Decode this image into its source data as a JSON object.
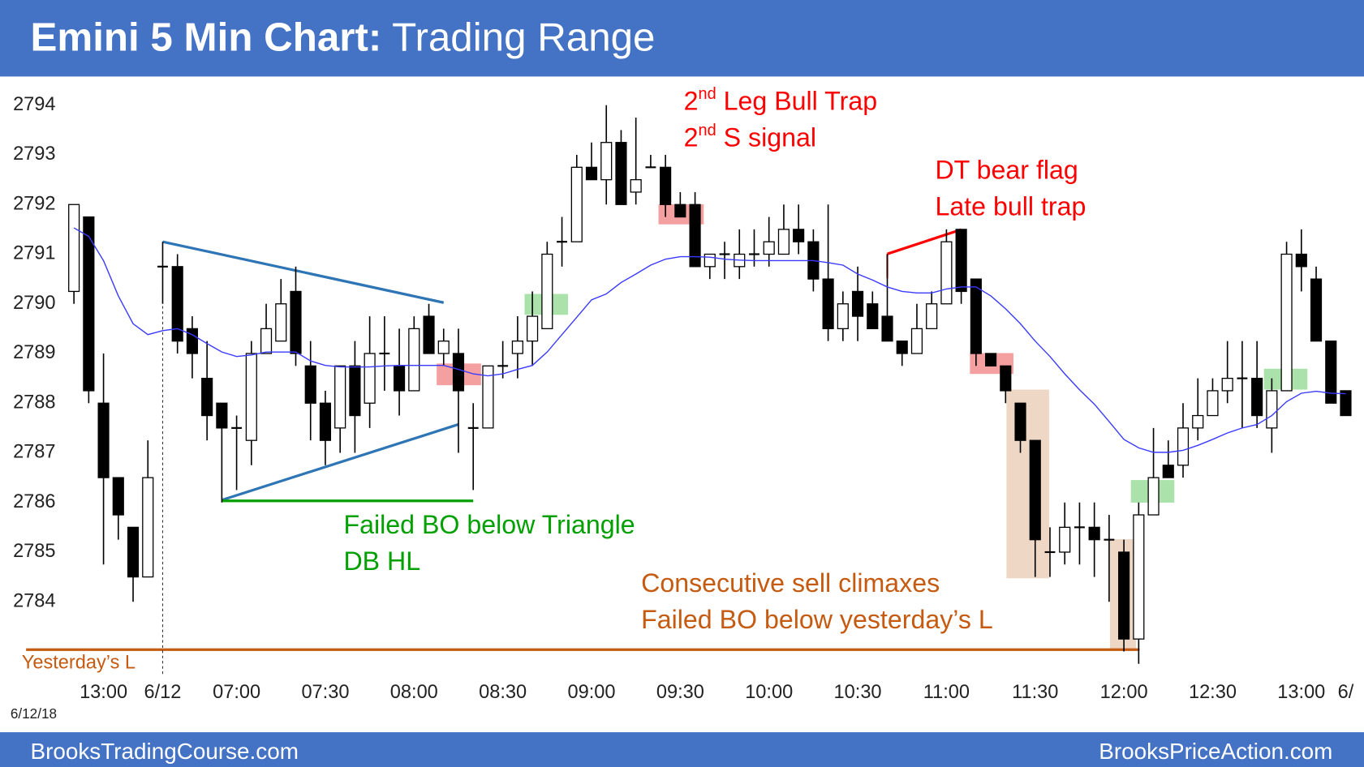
{
  "header": {
    "title_bold": "Emini 5 Min Chart:",
    "title": "Trading Range"
  },
  "footer": {
    "left": "BrooksTradingCourse.com",
    "right": "BrooksPriceAction.com"
  },
  "date_label": "6/12/18",
  "chart_data": {
    "type": "candlestick",
    "categories": [
      null,
      null,
      "13:00",
      null,
      null,
      null,
      "6/12",
      null,
      null,
      null,
      null,
      "07:00",
      null,
      null,
      null,
      null,
      null,
      "07:30",
      null,
      null,
      null,
      null,
      null,
      "08:00",
      null,
      null,
      null,
      null,
      null,
      "08:30",
      null,
      null,
      null,
      null,
      null,
      "09:00",
      null,
      null,
      null,
      null,
      null,
      "09:30",
      null,
      null,
      null,
      null,
      null,
      "10:00",
      null,
      null,
      null,
      null,
      null,
      "10:30",
      null,
      null,
      null,
      null,
      null,
      "11:00",
      null,
      null,
      null,
      null,
      null,
      "11:30",
      null,
      null,
      null,
      null,
      null,
      "12:00",
      null,
      null,
      null,
      null,
      null,
      "12:30",
      null,
      null,
      null,
      null,
      null,
      "13:00",
      null,
      null,
      "6/"
    ],
    "open": [
      2790.25,
      2791.75,
      2788.0,
      2786.5,
      2785.5,
      2784.5,
      2790.75,
      2790.75,
      2789.5,
      2788.5,
      2788.0,
      2787.5,
      2787.25,
      2789.0,
      2789.25,
      2790.25,
      2788.75,
      2788.0,
      2787.5,
      2788.75,
      2788.0,
      2789.0,
      2788.75,
      2788.25,
      2789.75,
      2789.0,
      2789.0,
      2787.5,
      2787.5,
      2788.75,
      2789.0,
      2789.25,
      2789.5,
      2791.25,
      2791.25,
      2792.75,
      2792.5,
      2793.25,
      2792.25,
      2792.75,
      2792.75,
      2792.0,
      2792.0,
      2790.75,
      2791.0,
      2790.75,
      2791.0,
      2791.0,
      2791.0,
      2791.5,
      2791.25,
      2790.5,
      2789.5,
      2790.25,
      2790.0,
      2789.75,
      2789.25,
      2789.0,
      2789.5,
      2790.0,
      2791.5,
      2790.5,
      2789.0,
      2788.75,
      2788.0,
      2787.25,
      2785.0,
      2785.0,
      2785.5,
      2785.5,
      2785.25,
      2785.0,
      2783.25,
      2785.75,
      2786.75,
      2786.75,
      2787.5,
      2787.75,
      2788.25,
      2788.5,
      2788.5,
      2787.5,
      2788.25,
      2791.0,
      2790.5,
      2789.25,
      2788.25
    ],
    "high": [
      2792.0,
      2791.75,
      2789.0,
      2786.5,
      2785.5,
      2787.25,
      2791.25,
      2791.0,
      2789.75,
      2789.25,
      2788.0,
      2787.75,
      2789.25,
      2790.0,
      2790.5,
      2790.75,
      2789.25,
      2788.25,
      2788.75,
      2789.25,
      2789.75,
      2789.75,
      2789.5,
      2789.75,
      2790.0,
      2789.5,
      2789.5,
      2788.0,
      2788.75,
      2789.25,
      2789.75,
      2790.25,
      2791.25,
      2791.75,
      2793.0,
      2793.25,
      2794.0,
      2793.5,
      2793.75,
      2793.0,
      2793.0,
      2792.25,
      2792.25,
      2791.0,
      2791.25,
      2791.5,
      2791.5,
      2791.75,
      2792.0,
      2792.0,
      2791.5,
      2792.0,
      2790.25,
      2790.75,
      2790.25,
      2791.0,
      2789.25,
      2790.0,
      2790.25,
      2791.5,
      2791.5,
      2790.5,
      2789.0,
      2788.75,
      2788.0,
      2787.25,
      2785.5,
      2786.0,
      2786.0,
      2786.0,
      2785.75,
      2785.25,
      2786.0,
      2787.5,
      2787.25,
      2788.0,
      2788.5,
      2788.5,
      2789.25,
      2789.25,
      2789.25,
      2788.5,
      2791.25,
      2791.5,
      2790.75,
      2789.25,
      2788.25
    ],
    "low": [
      2790.0,
      2788.0,
      2784.75,
      2785.25,
      2784.0,
      2784.5,
      2790.0,
      2789.0,
      2788.5,
      2787.25,
      2786.0,
      2786.25,
      2786.75,
      2789.0,
      2789.25,
      2788.75,
      2787.25,
      2786.75,
      2787.0,
      2787.0,
      2787.5,
      2788.25,
      2787.75,
      2788.25,
      2789.0,
      2788.75,
      2787.0,
      2786.25,
      2787.5,
      2788.5,
      2788.5,
      2788.75,
      2789.5,
      2790.75,
      2791.25,
      2792.5,
      2792.0,
      2792.0,
      2792.0,
      2792.75,
      2791.75,
      2791.75,
      2790.75,
      2790.5,
      2790.5,
      2790.5,
      2790.75,
      2790.75,
      2791.0,
      2791.0,
      2790.25,
      2789.25,
      2789.25,
      2789.25,
      2789.5,
      2789.25,
      2788.75,
      2789.0,
      2789.5,
      2790.0,
      2790.0,
      2788.75,
      2788.75,
      2788.0,
      2787.0,
      2784.5,
      2784.5,
      2784.75,
      2784.75,
      2784.5,
      2784.0,
      2783.0,
      2782.75,
      2785.75,
      2786.5,
      2786.5,
      2787.25,
      2787.75,
      2788.0,
      2787.5,
      2787.5,
      2787.0,
      2788.25,
      2790.25,
      2789.25,
      2788.0,
      2787.75
    ],
    "close": [
      2792.0,
      2788.25,
      2786.5,
      2785.75,
      2784.5,
      2786.5,
      2790.75,
      2789.25,
      2789.0,
      2787.75,
      2787.5,
      2787.5,
      2789.0,
      2789.5,
      2790.0,
      2789.0,
      2788.0,
      2787.25,
      2788.75,
      2787.75,
      2789.0,
      2789.0,
      2788.25,
      2789.5,
      2789.0,
      2789.25,
      2788.25,
      2787.5,
      2788.75,
      2788.75,
      2789.25,
      2789.75,
      2791.0,
      2791.25,
      2792.75,
      2792.5,
      2793.25,
      2792.0,
      2792.5,
      2792.75,
      2792.0,
      2791.75,
      2790.75,
      2791.0,
      2791.0,
      2791.0,
      2791.0,
      2791.25,
      2791.5,
      2791.25,
      2790.5,
      2789.5,
      2790.0,
      2789.75,
      2789.5,
      2789.25,
      2789.0,
      2789.5,
      2790.0,
      2791.25,
      2790.25,
      2789.0,
      2788.75,
      2788.25,
      2787.25,
      2785.25,
      2785.0,
      2785.5,
      2785.5,
      2785.25,
      2785.25,
      2783.25,
      2785.75,
      2786.5,
      2786.5,
      2787.5,
      2787.75,
      2788.25,
      2788.5,
      2788.5,
      2787.75,
      2788.25,
      2791.0,
      2790.75,
      2789.25,
      2788.0,
      2787.75
    ],
    "ema": [
      2791.53,
      2791.36,
      2790.87,
      2790.16,
      2789.6,
      2789.38,
      2789.46,
      2789.5,
      2789.38,
      2789.2,
      2789.03,
      2788.94,
      2788.97,
      2789.03,
      2789.03,
      2789.03,
      2788.85,
      2788.76,
      2788.73,
      2788.73,
      2788.73,
      2788.75,
      2788.76,
      2788.76,
      2788.76,
      2788.76,
      2788.68,
      2788.59,
      2788.55,
      2788.59,
      2788.68,
      2788.76,
      2789.03,
      2789.38,
      2789.73,
      2790.08,
      2790.2,
      2790.43,
      2790.6,
      2790.78,
      2790.9,
      2790.95,
      2790.95,
      2790.94,
      2790.9,
      2790.88,
      2790.87,
      2790.87,
      2790.87,
      2790.87,
      2790.87,
      2790.83,
      2790.78,
      2790.6,
      2790.48,
      2790.34,
      2790.25,
      2790.22,
      2790.22,
      2790.3,
      2790.34,
      2790.34,
      2790.16,
      2789.9,
      2789.6,
      2789.25,
      2788.94,
      2788.59,
      2788.27,
      2787.98,
      2787.63,
      2787.27,
      2787.1,
      2787.01,
      2787.01,
      2787.05,
      2787.15,
      2787.27,
      2787.4,
      2787.5,
      2787.57,
      2787.75,
      2788.03,
      2788.2,
      2788.24,
      2788.2,
      2788.19
    ],
    "ema_color": "#3a3aff",
    "up_color": "#ffffff",
    "down_color": "#000000",
    "ylim": [
      2782.5,
      2794.5
    ],
    "yticks": [
      2784,
      2785,
      2786,
      2787,
      2788,
      2789,
      2790,
      2791,
      2792,
      2793,
      2794
    ],
    "annotations": [
      {
        "text": "2",
        "sup": "nd",
        "after": " Leg Bull Trap",
        "color": "#ff0000"
      },
      {
        "text": "2",
        "sup": "nd",
        "after": " S signal",
        "color": "#ff0000"
      },
      {
        "text": "DT bear flag",
        "color": "#ff0000"
      },
      {
        "text": "Late bull trap",
        "color": "#ff0000"
      },
      {
        "text": "Failed BO below Triangle",
        "color": "#00a000"
      },
      {
        "text": "DB HL",
        "color": "#00a000"
      },
      {
        "text": "Consecutive sell climaxes",
        "color": "#c55a11"
      },
      {
        "text": "Failed BO below yesterday’s L",
        "color": "#c55a11"
      },
      {
        "text": "Yesterday’s L",
        "color": "#c55a11"
      }
    ]
  }
}
